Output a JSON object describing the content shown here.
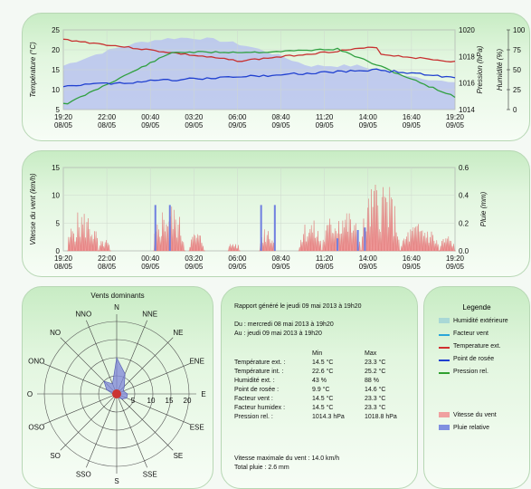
{
  "chart_temp": {
    "y_left_label": "Température (°C)",
    "y_mid_label": "Pression (hPa)",
    "y_right_label": "Humidité (%)",
    "y_left_ticks": [
      "25",
      "20",
      "15",
      "10",
      "5"
    ],
    "y_mid_ticks": [
      "1020",
      "1018",
      "1016",
      "1014"
    ],
    "y_right_ticks": [
      "100",
      "75",
      "50",
      "25",
      "0"
    ],
    "x_times": [
      "19:20",
      "22:00",
      "00:40",
      "03:20",
      "06:00",
      "08:40",
      "11:20",
      "14:00",
      "16:40",
      "19:20"
    ],
    "x_dates": [
      "08/05",
      "08/05",
      "09/05",
      "09/05",
      "09/05",
      "09/05",
      "09/05",
      "09/05",
      "09/05",
      "09/05"
    ]
  },
  "chart_wind": {
    "y_left_label": "Vitesse du vent (km/h)",
    "y_right_label": "Pluie (mm)",
    "y_left_ticks": [
      "15",
      "10",
      "5",
      "0"
    ],
    "y_right_ticks": [
      "0.6",
      "0.4",
      "0.2",
      "0.0"
    ],
    "x_times": [
      "19:20",
      "22:00",
      "00:40",
      "03:20",
      "06:00",
      "08:40",
      "11:20",
      "14:00",
      "16:40",
      "19:20"
    ],
    "x_dates": [
      "08/05",
      "08/05",
      "09/05",
      "09/05",
      "09/05",
      "09/05",
      "09/05",
      "09/05",
      "09/05",
      "09/05"
    ]
  },
  "rose": {
    "title": "Vents dominants",
    "dirs": [
      "N",
      "NNE",
      "NE",
      "ENE",
      "E",
      "ESE",
      "SE",
      "SSE",
      "S",
      "SSO",
      "SO",
      "OSO",
      "O",
      "ONO",
      "NO",
      "NNO"
    ],
    "ring_labels": [
      "5",
      "10",
      "15",
      "20"
    ],
    "values": [
      10,
      6,
      3,
      2,
      3,
      3,
      2,
      1,
      1,
      1,
      1,
      1,
      1,
      3,
      5,
      3
    ]
  },
  "report": {
    "generated": "Rapport généré le jeudi 09 mai 2013 à 19h20",
    "from": "Du : mercredi 08 mai 2013 à 19h20",
    "to": "Au : jeudi 09 mai 2013 à 19h20",
    "col_min": "Min",
    "col_max": "Max",
    "rows": [
      {
        "label": "Température ext. :",
        "min": "14.5 °C",
        "max": "23.3 °C"
      },
      {
        "label": "Température int. :",
        "min": "22.6 °C",
        "max": "25.2 °C"
      },
      {
        "label": "Humidité ext. :",
        "min": "43 %",
        "max": "88 %"
      },
      {
        "label": "Point de rosée :",
        "min": "9.9 °C",
        "max": "14.6 °C"
      },
      {
        "label": "Facteur vent :",
        "min": "14.5 °C",
        "max": "23.3 °C"
      },
      {
        "label": "Facteur humidex :",
        "min": "14.5 °C",
        "max": "23.3 °C"
      },
      {
        "label": "Pression rel. :",
        "min": "1014.3 hPa",
        "max": "1018.8 hPa"
      }
    ],
    "max_wind": "Vitesse maximale du vent : 14.0 km/h",
    "total_rain": "Total pluie : 2.6 mm"
  },
  "legend": {
    "title": "Legende",
    "items": [
      {
        "label": "Humidité extérieure",
        "color": "#a9d8d6"
      },
      {
        "label": "Facteur vent",
        "color": "#2aa6d8"
      },
      {
        "label": "Temperature ext.",
        "color": "#d03030"
      },
      {
        "label": "Point de rosée",
        "color": "#2040d0"
      },
      {
        "label": "Pression rel.",
        "color": "#30a030"
      },
      {
        "label": "Vitesse du vent",
        "color": "#f0a0a0"
      },
      {
        "label": "Pluie relative",
        "color": "#8090e0"
      }
    ]
  }
}
